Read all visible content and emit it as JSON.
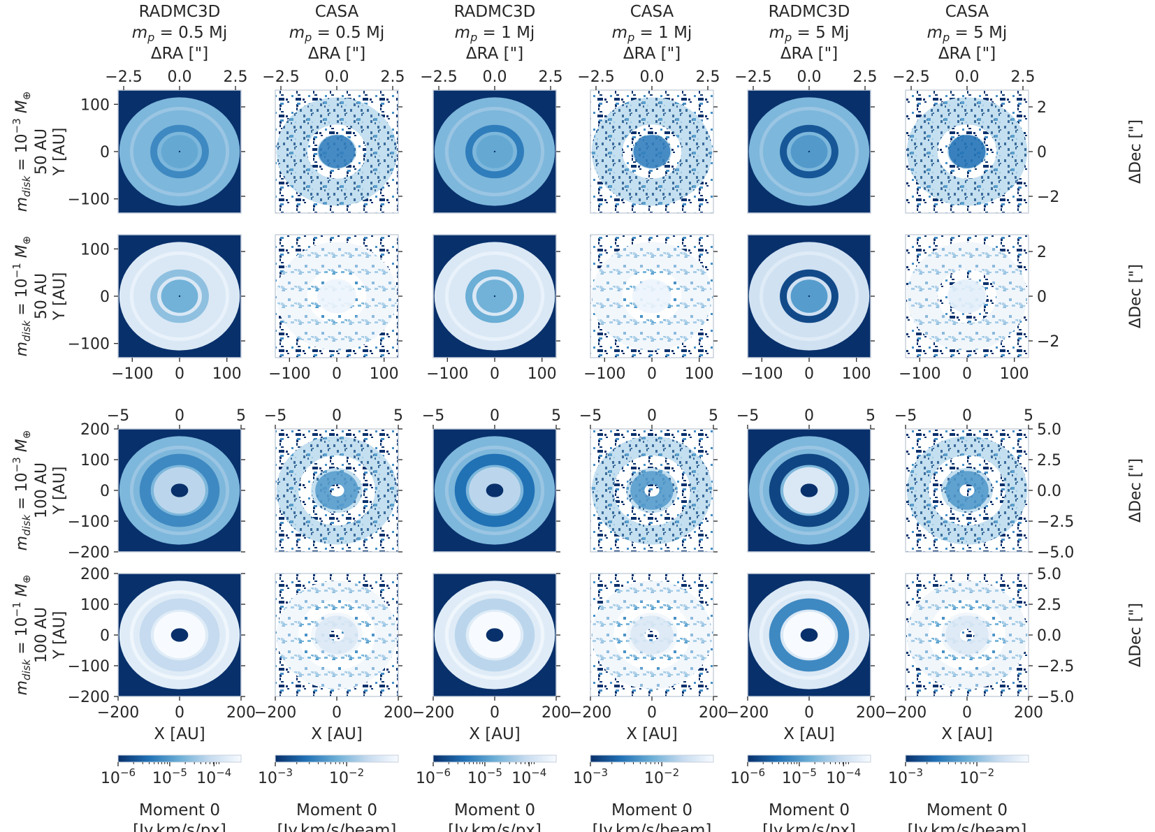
{
  "chart_data": {
    "type": "heatmap",
    "description_rows": [
      {
        "row_label": "m_disk = 10^-3 M_⊕",
        "row_label_main": "m",
        "row_label_sub": "disk",
        "row_label_eq": " = 10",
        "row_label_exp": "−3",
        "row_label_tail": " M",
        "row_label_tail_sub": "⊕",
        "distance_label": "50 AU",
        "ylabel": "Y [AU]",
        "ylim": [
          -130,
          130
        ],
        "yticks": [
          "100",
          "0",
          "−100"
        ],
        "right_label": "ΔDec [\"]",
        "right_ticks": [
          "2",
          "0",
          "−2"
        ]
      },
      {
        "row_label": "m_disk = 10^-1 M_⊕",
        "row_label_main": "m",
        "row_label_sub": "disk",
        "row_label_eq": " = 10",
        "row_label_exp": "−1",
        "row_label_tail": " M",
        "row_label_tail_sub": "⊕",
        "distance_label": "50 AU",
        "ylabel": "Y [AU]",
        "ylim": [
          -130,
          130
        ],
        "yticks": [
          "100",
          "0",
          "−100"
        ],
        "right_label": "ΔDec [\"]",
        "right_ticks": [
          "2",
          "0",
          "−2"
        ]
      },
      {
        "row_label": "m_disk = 10^-3 M_⊕",
        "row_label_main": "m",
        "row_label_sub": "disk",
        "row_label_eq": " = 10",
        "row_label_exp": "−3",
        "row_label_tail": " M",
        "row_label_tail_sub": "⊕",
        "distance_label": "100 AU",
        "ylabel": "Y [AU]",
        "ylim": [
          -200,
          200
        ],
        "yticks": [
          "200",
          "100",
          "0",
          "−100",
          "−200"
        ],
        "right_label": "ΔDec [\"]",
        "right_ticks": [
          "5.0",
          "2.5",
          "0.0",
          "−2.5",
          "−5.0"
        ]
      },
      {
        "row_label": "m_disk = 10^-1 M_⊕",
        "row_label_main": "m",
        "row_label_sub": "disk",
        "row_label_eq": " = 10",
        "row_label_exp": "−1",
        "row_label_tail": " M",
        "row_label_tail_sub": "⊕",
        "distance_label": "100 AU",
        "ylabel": "Y [AU]",
        "ylim": [
          -200,
          200
        ],
        "yticks": [
          "200",
          "100",
          "0",
          "−100",
          "−200"
        ],
        "right_label": "ΔDec [\"]",
        "right_ticks": [
          "5.0",
          "2.5",
          "0.0",
          "−2.5",
          "−5.0"
        ]
      }
    ],
    "columns": [
      {
        "source": "RADMC3D",
        "mass_label": "m",
        "mass_sub": "p",
        "mass_value": " = 0.5 Mj",
        "colorbar_ticks": [
          "10",
          "10",
          "10"
        ],
        "colorbar_exps": [
          "−6",
          "−5",
          "−4"
        ],
        "colorbar_label_1": "Moment 0",
        "colorbar_label_2": "[Jy.km/s/px]"
      },
      {
        "source": "CASA",
        "mass_label": "m",
        "mass_sub": "p",
        "mass_value": " = 0.5 Mj",
        "colorbar_ticks": [
          "10",
          "10"
        ],
        "colorbar_exps": [
          "−3",
          "−2"
        ],
        "colorbar_label_1": "Moment 0",
        "colorbar_label_2": "[Jy.km/s/beam]"
      },
      {
        "source": "RADMC3D",
        "mass_label": "m",
        "mass_sub": "p",
        "mass_value": " = 1 Mj",
        "colorbar_ticks": [
          "10",
          "10",
          "10"
        ],
        "colorbar_exps": [
          "−6",
          "−5",
          "−4"
        ],
        "colorbar_label_1": "Moment 0",
        "colorbar_label_2": "[Jy.km/s/px]"
      },
      {
        "source": "CASA",
        "mass_label": "m",
        "mass_sub": "p",
        "mass_value": " = 1 Mj",
        "colorbar_ticks": [
          "10",
          "10"
        ],
        "colorbar_exps": [
          "−3",
          "−2"
        ],
        "colorbar_label_1": "Moment 0",
        "colorbar_label_2": "[Jy.km/s/beam]"
      },
      {
        "source": "RADMC3D",
        "mass_label": "m",
        "mass_sub": "p",
        "mass_value": " = 5 Mj",
        "colorbar_ticks": [
          "10",
          "10",
          "10"
        ],
        "colorbar_exps": [
          "−6",
          "−5",
          "−4"
        ],
        "colorbar_label_1": "Moment 0",
        "colorbar_label_2": "[Jy.km/s/px]"
      },
      {
        "source": "CASA",
        "mass_label": "m",
        "mass_sub": "p",
        "mass_value": " = 5 Mj",
        "colorbar_ticks": [
          "10",
          "10"
        ],
        "colorbar_exps": [
          "−3",
          "−2"
        ],
        "colorbar_label_1": "Moment 0",
        "colorbar_label_2": "[Jy.km/s/beam]"
      }
    ],
    "top_axis_label": "ΔRA [\"]",
    "top_ticks_50au": [
      "−2.5",
      "0.0",
      "2.5"
    ],
    "top_ticks_100au": [
      "−5",
      "0",
      "5"
    ],
    "bottom_ticks_50au": [
      "−100",
      "0",
      "100"
    ],
    "bottom_ticks_100au": [
      "−200",
      "0",
      "200"
    ],
    "xlabel": "X [AU]",
    "xlim_50au": [
      -130,
      130
    ],
    "xlim_100au": [
      -200,
      200
    ],
    "colormap": "Blues_r",
    "colors": {
      "dark": "#08306b",
      "mid": "#2e7ebc",
      "light": "#c6dbef",
      "white": "#f7fbff",
      "frame": "#c8d0dc"
    },
    "panels": [
      [
        {
          "kind": "model",
          "ring": 0.55,
          "gap": 0.35,
          "inner": 0.18,
          "disk": 0.98,
          "hole": false
        },
        {
          "kind": "obs",
          "ring": 0.55,
          "gap": 0.4,
          "inner": 0.3,
          "disk": 0.98,
          "noise": 0.55
        },
        {
          "kind": "model",
          "ring": 0.55,
          "gap": 0.3,
          "inner": 0.18,
          "disk": 0.98,
          "hole": false
        },
        {
          "kind": "obs",
          "ring": 0.55,
          "gap": 0.4,
          "inner": 0.3,
          "disk": 0.98,
          "noise": 0.55
        },
        {
          "kind": "model",
          "ring": 0.55,
          "gap": 0.15,
          "inner": 0.12,
          "disk": 0.98,
          "hole": false
        },
        {
          "kind": "obs",
          "ring": 0.55,
          "gap": 0.3,
          "inner": 0.25,
          "disk": 0.98,
          "noise": 0.55
        }
      ],
      [
        {
          "kind": "model",
          "ring": 0.85,
          "gap": 0.6,
          "inner": 0.22,
          "disk": 0.98,
          "hole": false
        },
        {
          "kind": "obs",
          "ring": 0.9,
          "gap": 0.92,
          "inner": 0.95,
          "disk": 0.98,
          "noise": 0.85
        },
        {
          "kind": "model",
          "ring": 0.85,
          "gap": 0.5,
          "inner": 0.22,
          "disk": 0.98,
          "hole": false
        },
        {
          "kind": "obs",
          "ring": 0.9,
          "gap": 0.92,
          "inner": 0.95,
          "disk": 0.98,
          "noise": 0.85
        },
        {
          "kind": "model",
          "ring": 0.8,
          "gap": 0.1,
          "inner": 0.13,
          "disk": 0.98,
          "hole": false
        },
        {
          "kind": "obs",
          "ring": 0.88,
          "gap": 0.25,
          "inner": 0.9,
          "disk": 0.98,
          "noise": 0.8
        }
      ],
      [
        {
          "kind": "model",
          "ring": 0.55,
          "gap": 0.35,
          "inner": 0.42,
          "disk": 0.98,
          "hole": true
        },
        {
          "kind": "obs",
          "ring": 0.55,
          "gap": 0.35,
          "inner": 0.42,
          "disk": 0.98,
          "noise": 0.55
        },
        {
          "kind": "model",
          "ring": 0.55,
          "gap": 0.25,
          "inner": 0.42,
          "disk": 0.98,
          "hole": true
        },
        {
          "kind": "obs",
          "ring": 0.55,
          "gap": 0.3,
          "inner": 0.42,
          "disk": 0.98,
          "noise": 0.55
        },
        {
          "kind": "model",
          "ring": 0.55,
          "gap": 0.08,
          "inner": 0.55,
          "disk": 0.98,
          "hole": true
        },
        {
          "kind": "obs",
          "ring": 0.55,
          "gap": 0.15,
          "inner": 0.4,
          "disk": 0.98,
          "noise": 0.55
        }
      ],
      [
        {
          "kind": "model",
          "ring": 0.88,
          "gap": 0.75,
          "inner": 0.85,
          "disk": 0.98,
          "hole": true
        },
        {
          "kind": "obs",
          "ring": 0.9,
          "gap": 0.85,
          "inner": 0.85,
          "disk": 0.98,
          "noise": 0.85
        },
        {
          "kind": "model",
          "ring": 0.88,
          "gap": 0.72,
          "inner": 0.85,
          "disk": 0.98,
          "hole": true
        },
        {
          "kind": "obs",
          "ring": 0.9,
          "gap": 0.85,
          "inner": 0.85,
          "disk": 0.98,
          "noise": 0.85
        },
        {
          "kind": "model",
          "ring": 0.85,
          "gap": 0.35,
          "inner": 0.85,
          "disk": 0.98,
          "hole": true
        },
        {
          "kind": "obs",
          "ring": 0.88,
          "gap": 0.55,
          "inner": 0.85,
          "disk": 0.98,
          "noise": 0.8
        }
      ]
    ]
  }
}
